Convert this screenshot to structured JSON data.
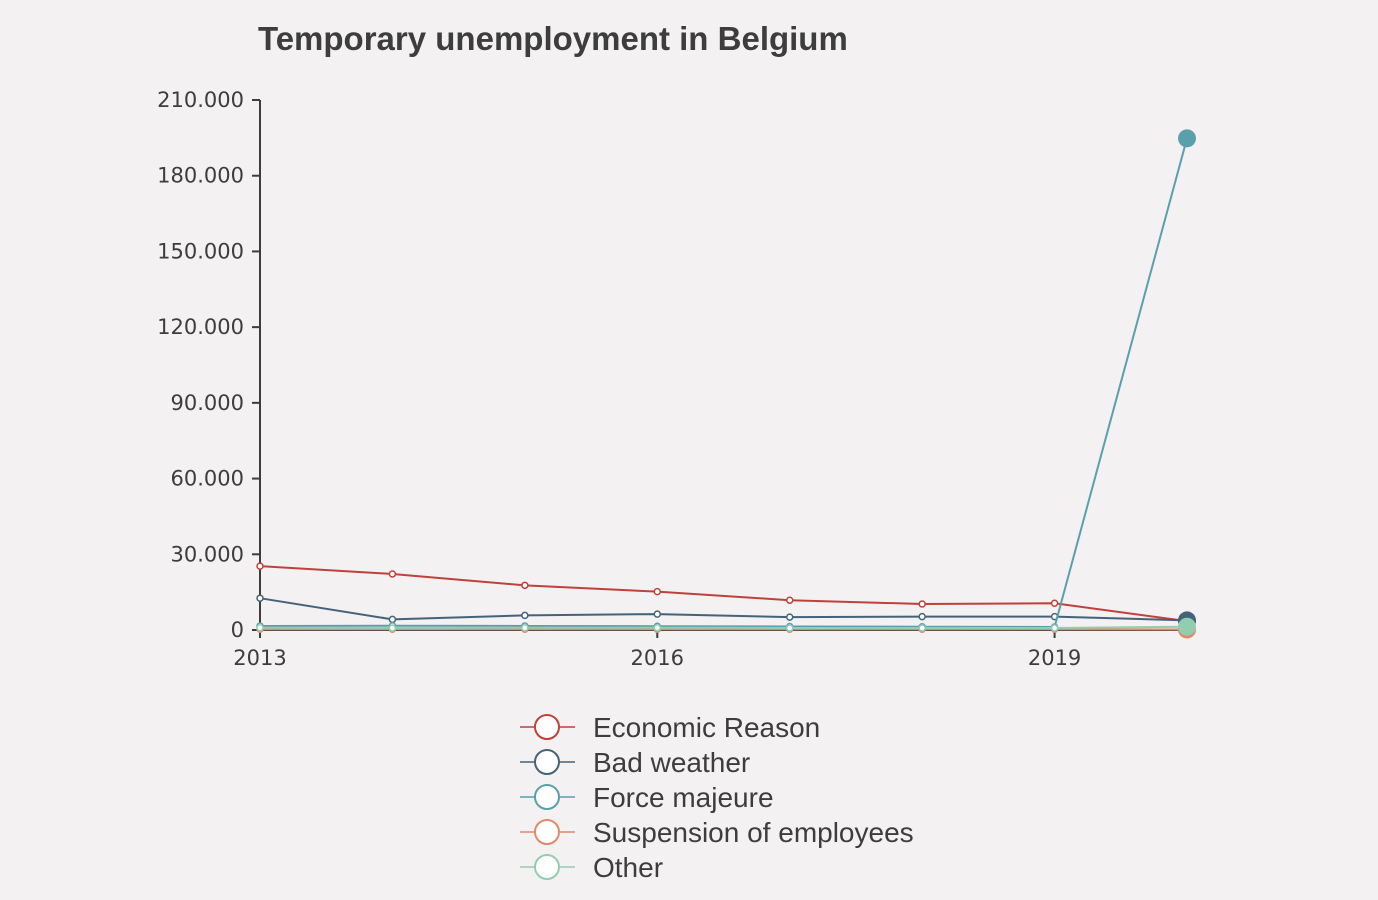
{
  "chart_data": {
    "type": "line",
    "title": "Temporary unemployment in Belgium",
    "xlabel": "",
    "ylabel": "",
    "x": [
      2013,
      2014,
      2015,
      2016,
      2017,
      2018,
      2019,
      2020
    ],
    "xticks": [
      2013,
      2016,
      2019
    ],
    "xtick_labels": [
      "2013",
      "2016",
      "2019"
    ],
    "xlim": [
      2013,
      2020
    ],
    "ylim": [
      0,
      210000
    ],
    "yticks": [
      0,
      30000,
      60000,
      90000,
      120000,
      150000,
      180000,
      210000
    ],
    "ytick_labels": [
      "0",
      "30.000",
      "60.000",
      "90.000",
      "120.000",
      "150.000",
      "180.000",
      "210.000"
    ],
    "grid": false,
    "legend_position": "bottom",
    "series": [
      {
        "name": "Economic Reason",
        "color": "#c0413b",
        "values": [
          25300,
          22200,
          17700,
          15200,
          11800,
          10300,
          10600,
          3500
        ]
      },
      {
        "name": "Bad weather",
        "color": "#456378",
        "values": [
          12600,
          4200,
          5800,
          6300,
          5100,
          5300,
          5300,
          3800
        ]
      },
      {
        "name": "Force majeure",
        "color": "#5aa0ab",
        "values": [
          1600,
          1700,
          1600,
          1500,
          1400,
          1300,
          1200,
          194800
        ]
      },
      {
        "name": "Suspension of employees",
        "color": "#e08a6b",
        "values": [
          300,
          300,
          300,
          300,
          300,
          300,
          300,
          200
        ]
      },
      {
        "name": "Other",
        "color": "#93cdb0",
        "values": [
          900,
          800,
          900,
          900,
          800,
          800,
          800,
          1300
        ]
      }
    ]
  }
}
